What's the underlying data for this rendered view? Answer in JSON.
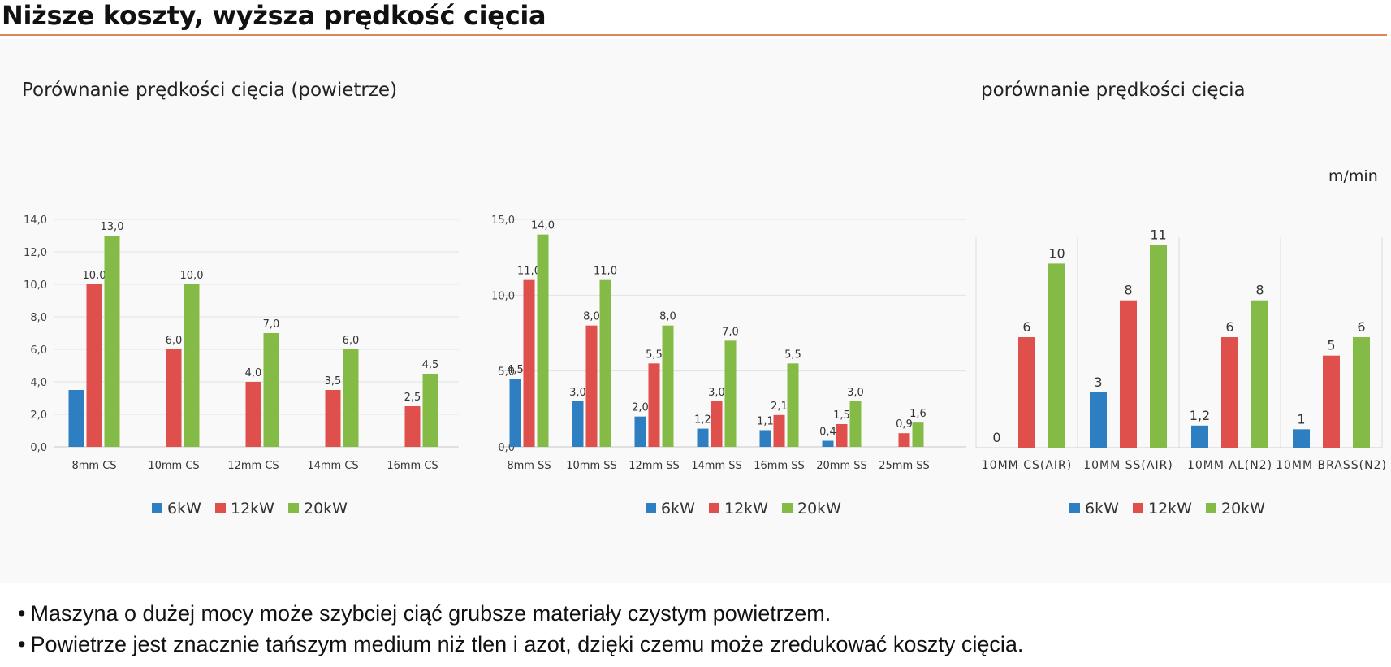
{
  "page": {
    "title": "Niższe koszty, wyższa prędkość cięcia"
  },
  "colors": {
    "6kW": "#2e7fc1",
    "12kW": "#df4f4b",
    "20kW": "#84bb47",
    "accent_rule": "#e0855a"
  },
  "chart_data": [
    {
      "type": "bar",
      "title": "Porównanie prędkości cięcia (powietrze)",
      "categories": [
        "8mm CS",
        "10mm CS",
        "12mm CS",
        "14mm CS",
        "16mm CS"
      ],
      "series": [
        {
          "name": "6kW",
          "values": [
            3.5,
            null,
            null,
            null,
            null
          ],
          "labels": [
            "",
            "",
            "",
            "",
            ""
          ]
        },
        {
          "name": "12kW",
          "values": [
            10.0,
            6.0,
            4.0,
            3.5,
            2.5
          ],
          "labels": [
            "10,0",
            "6,0",
            "4,0",
            "3,5",
            "2,5"
          ]
        },
        {
          "name": "20kW",
          "values": [
            13.0,
            10.0,
            7.0,
            6.0,
            4.5
          ],
          "labels": [
            "13,0",
            "10,0",
            "7,0",
            "6,0",
            "4,5"
          ]
        }
      ],
      "ylim": [
        0,
        14
      ],
      "yticks": [
        0,
        2,
        4,
        6,
        8,
        10,
        12,
        14
      ],
      "ytick_labels": [
        "0,0",
        "2,0",
        "4,0",
        "6,0",
        "8,0",
        "10,0",
        "12,0",
        "14,0"
      ],
      "grid": true,
      "legend": "bottom-center"
    },
    {
      "type": "bar",
      "title": "",
      "categories": [
        "8mm SS",
        "10mm SS",
        "12mm SS",
        "14mm SS",
        "16mm SS",
        "20mm SS",
        "25mm SS"
      ],
      "series": [
        {
          "name": "6kW",
          "values": [
            4.5,
            3.0,
            2.0,
            1.2,
            1.1,
            0.4,
            null
          ],
          "labels": [
            "4,5",
            "3,0",
            "2,0",
            "1,2",
            "1,1",
            "0,4",
            ""
          ]
        },
        {
          "name": "12kW",
          "values": [
            11.0,
            8.0,
            5.5,
            3.0,
            2.1,
            1.5,
            0.9
          ],
          "labels": [
            "11,0",
            "8,0",
            "5,5",
            "3,0",
            "2,1",
            "1,5",
            "0,9"
          ]
        },
        {
          "name": "20kW",
          "values": [
            14.0,
            11.0,
            8.0,
            7.0,
            5.5,
            3.0,
            1.6
          ],
          "labels": [
            "14,0",
            "11,0",
            "8,0",
            "7,0",
            "5,5",
            "3,0",
            "1,6"
          ]
        }
      ],
      "ylim": [
        0,
        15
      ],
      "yticks": [
        0,
        5,
        10,
        15
      ],
      "ytick_labels": [
        "0,0",
        "5,0",
        "10,0",
        "15,0"
      ],
      "grid": true,
      "legend": "bottom-center"
    },
    {
      "type": "bar",
      "title": "porównanie prędkości cięcia",
      "unit": "m/min",
      "categories": [
        "10MM CS(AIR)",
        "10MM SS(AIR)",
        "10MM AL(N2)",
        "10MM BRASS(N2)"
      ],
      "series": [
        {
          "name": "6kW",
          "values": [
            0,
            3,
            1.2,
            1
          ],
          "labels": [
            "0",
            "3",
            "1,2",
            "1"
          ]
        },
        {
          "name": "12kW",
          "values": [
            6,
            8,
            6,
            5
          ],
          "labels": [
            "6",
            "8",
            "6",
            "5"
          ]
        },
        {
          "name": "20kW",
          "values": [
            10,
            11,
            8,
            6
          ],
          "labels": [
            "10",
            "11",
            "8",
            "6"
          ]
        }
      ],
      "ylim": [
        0,
        12.4
      ],
      "grid": false,
      "legend": "bottom-center"
    }
  ],
  "bullets": [
    "Maszyna o dużej mocy może szybciej ciąć grubsze materiały czystym powietrzem.",
    "Powietrze jest znacznie tańszym medium niż tlen i azot, dzięki czemu może zredukować koszty cięcia."
  ],
  "bullet_symbol": "•"
}
